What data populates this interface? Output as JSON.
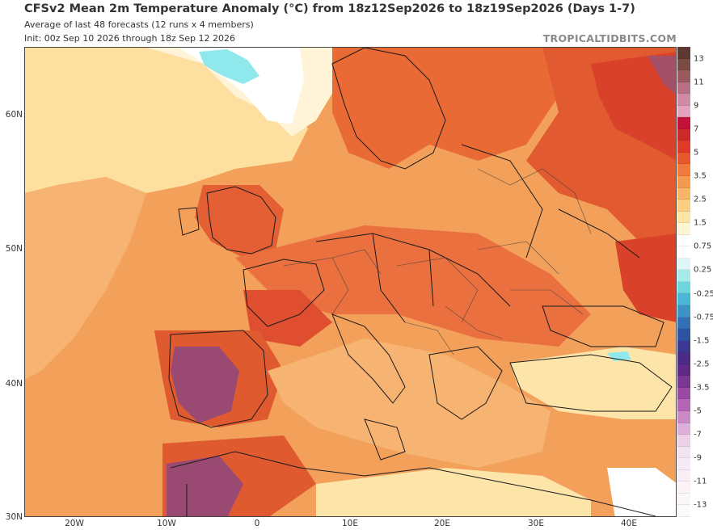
{
  "header": {
    "title": "CFSv2 Mean 2m Temperature Anomaly (°C) from 18z12Sep2026 to 18z19Sep2026 (Days 1-7)",
    "subtitle": "Average of last 48 forecasts (12 runs x 4 members)",
    "init": "Init: 00z Sep 10 2026 through 18z Sep 12 2026",
    "brand": "TROPICALTIDBITS.COM"
  },
  "axes": {
    "lat_labels": [
      "60N",
      "50N",
      "40N",
      "30N"
    ],
    "lon_labels": [
      "20W",
      "10W",
      "0",
      "10E",
      "20E",
      "30E",
      "40E"
    ]
  },
  "colorbar": {
    "labels": [
      "13",
      "11",
      "9",
      "7",
      "5",
      "3.5",
      "2.5",
      "1.5",
      "0.75",
      "0.25",
      "-0.25",
      "-0.75",
      "-1.5",
      "-2.5",
      "-3.5",
      "-5",
      "-7",
      "-9",
      "-11",
      "-13"
    ],
    "colors": [
      "#5c3a33",
      "#7a4a45",
      "#9a5a5e",
      "#b77085",
      "#cf8aa5",
      "#e3a3bf",
      "#c2123a",
      "#cc2a2a",
      "#de3a2a",
      "#e8582e",
      "#ef7a3c",
      "#f39a4e",
      "#f7b565",
      "#fbcf82",
      "#fde5a6",
      "#fef5d4",
      "#ffffff",
      "#ffffff",
      "#dff6f6",
      "#a7eaea",
      "#6fd6de",
      "#4cb7d4",
      "#3d93c6",
      "#356fb4",
      "#2f52a3",
      "#3a3a92",
      "#4a2c86",
      "#5e2a86",
      "#7a3792",
      "#9a4aa2",
      "#b466b4",
      "#c98ac6",
      "#dcb0d8",
      "#ecd0e6",
      "#f3e3f0",
      "#f6eaf4",
      "#f8eff6",
      "#faf3f8",
      "#fbf6fa",
      "#fcf9fc"
    ]
  },
  "map_colors": {
    "base": "#f2a05a",
    "cool": "#fde4a8",
    "mid": "#f6b372",
    "warm": "#e96a35",
    "hot": "#d9412b",
    "very_hot": "#c23a3e",
    "extreme": "#9a4a72",
    "cold": "#8ee8ec",
    "white": "#ffffff",
    "border": "#1a1a1a"
  }
}
